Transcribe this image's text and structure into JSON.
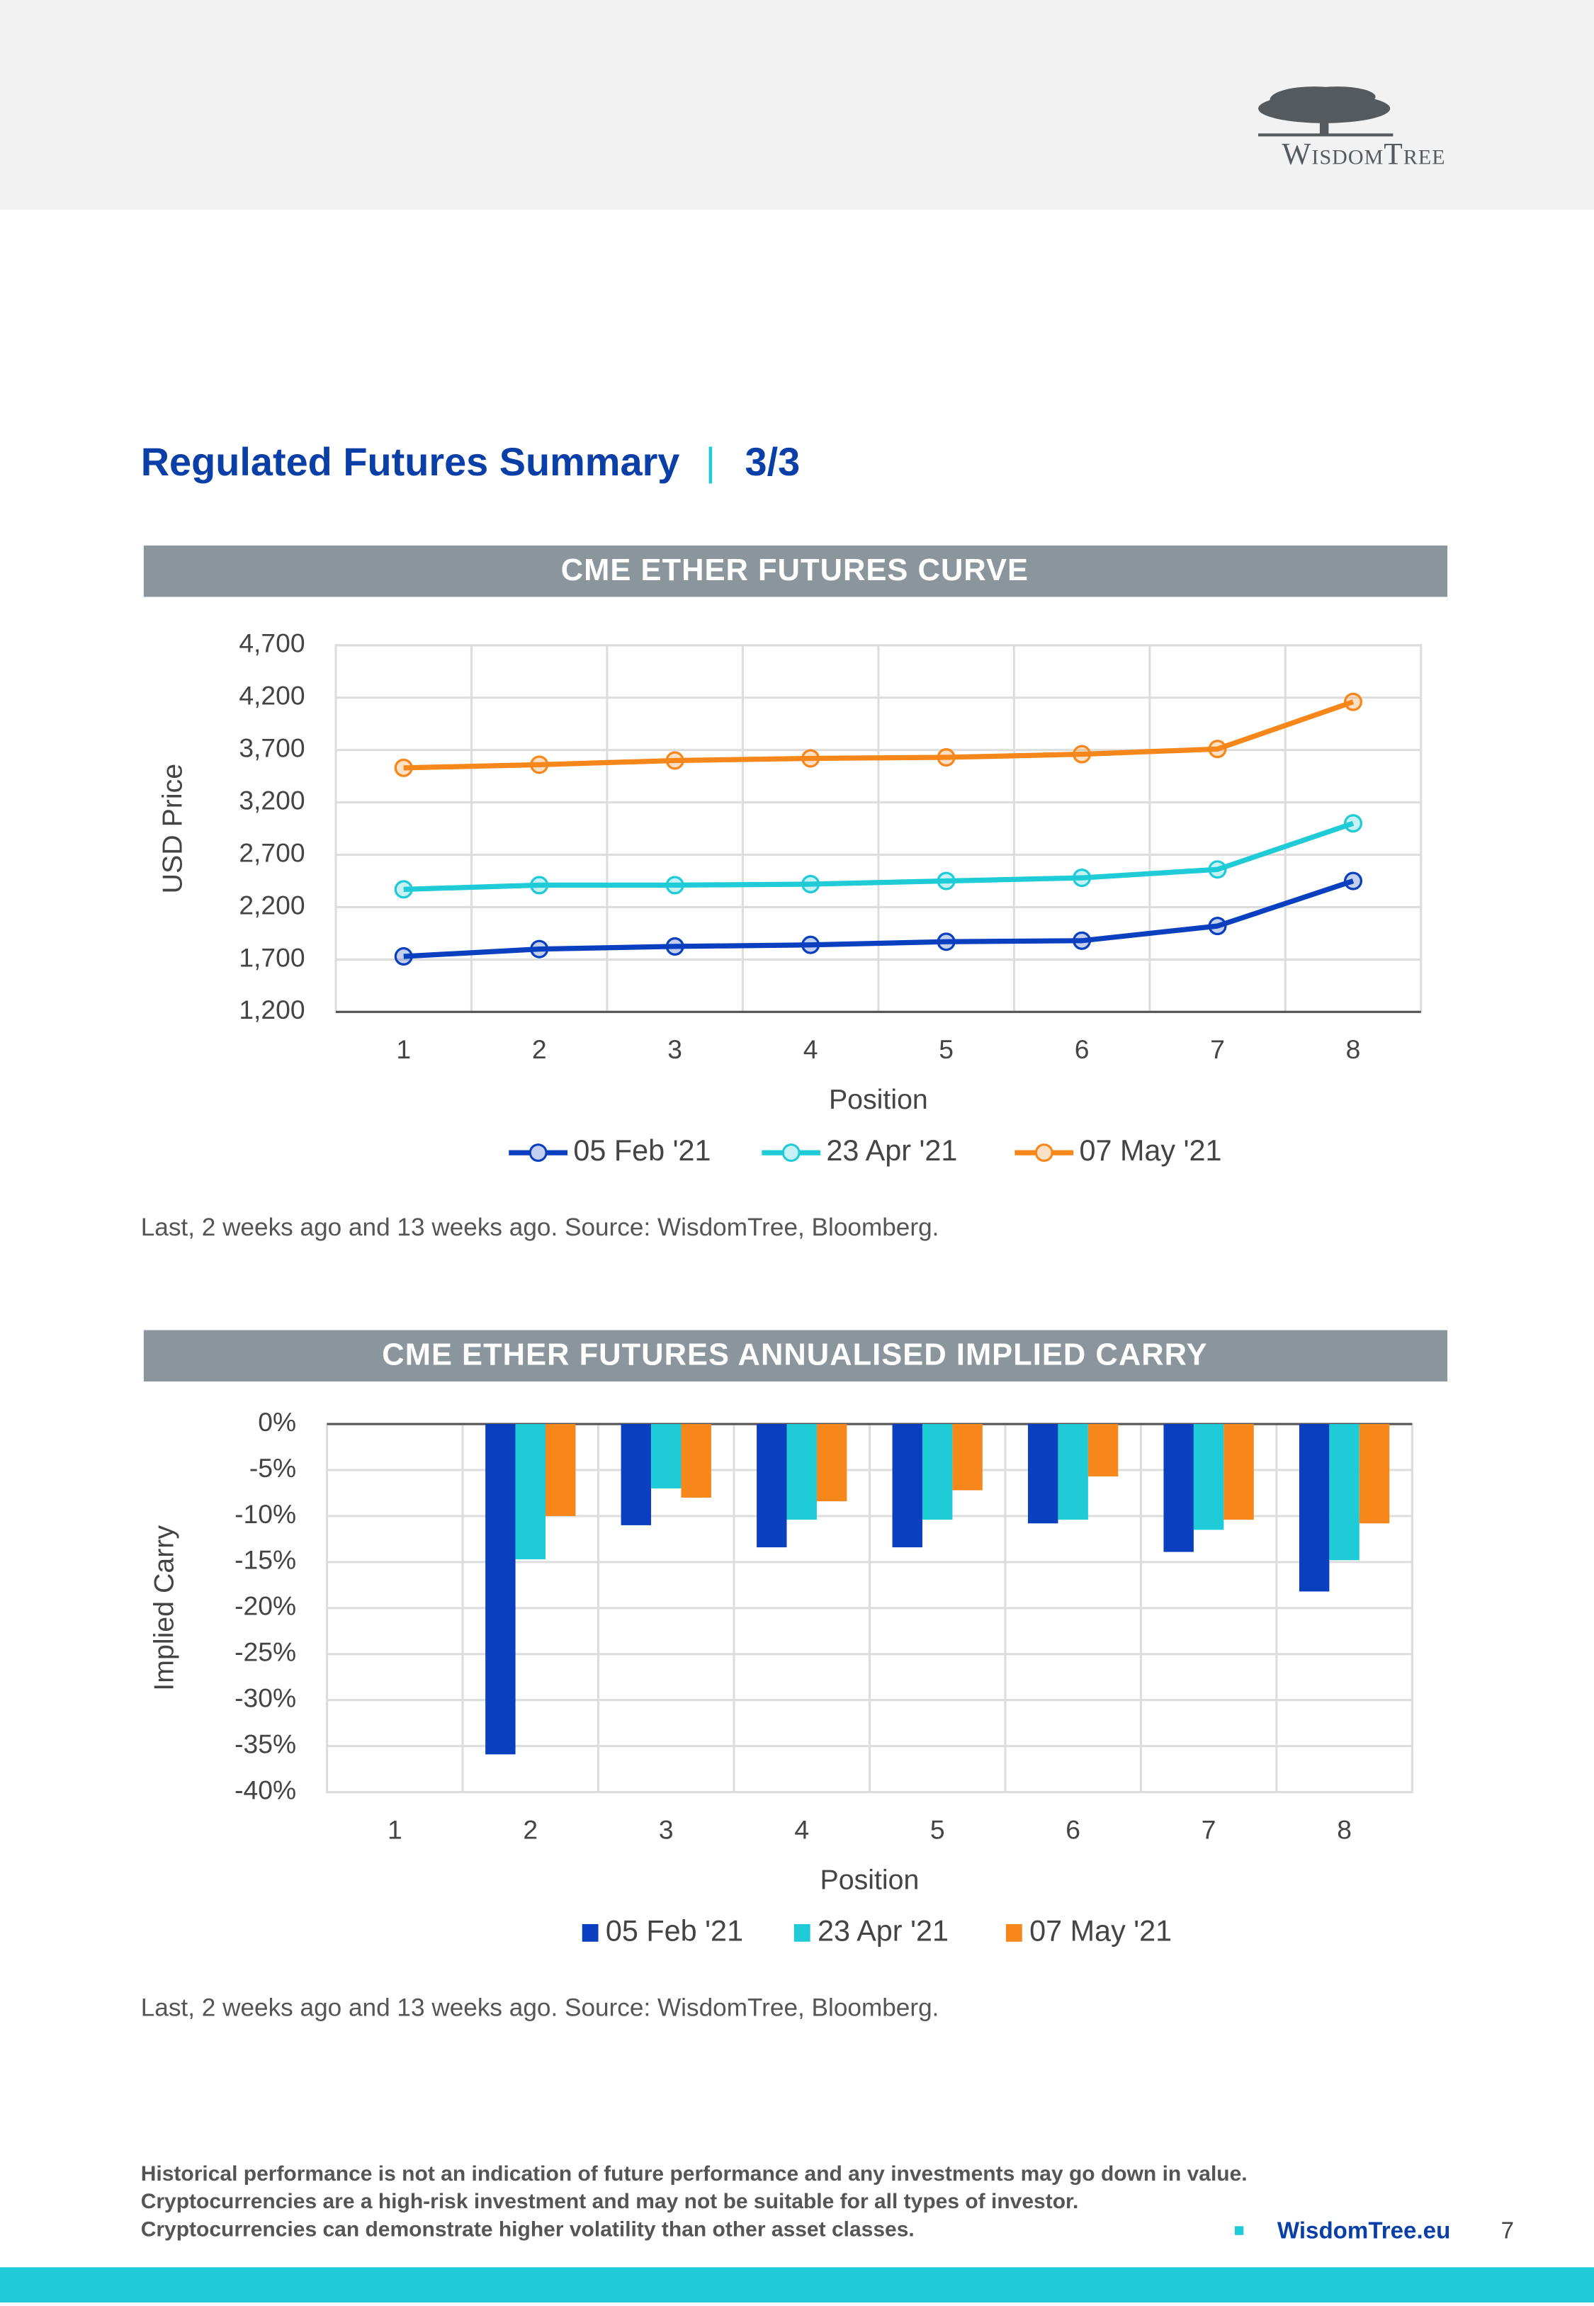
{
  "header": {
    "logo": "WisdomTree"
  },
  "title": "Regulated Futures Summary",
  "page_part": "3/3",
  "chart_data": [
    {
      "type": "line",
      "title": "CME ETHER FUTURES CURVE",
      "x_label": "Position",
      "y_label": "USD Price",
      "categories": [
        "1",
        "2",
        "3",
        "4",
        "5",
        "6",
        "7",
        "8"
      ],
      "series": [
        {
          "name": "05 Feb '21",
          "color": "#0a3fbf",
          "values": [
            1730,
            1800,
            1825,
            1840,
            1870,
            1880,
            2020,
            2450
          ]
        },
        {
          "name": "23 Apr '21",
          "color": "#1ecbd6",
          "values": [
            2370,
            2410,
            2410,
            2420,
            2450,
            2480,
            2560,
            3000
          ]
        },
        {
          "name": "07 May '21",
          "color": "#f7871b",
          "values": [
            3530,
            3560,
            3600,
            3620,
            3630,
            3660,
            3710,
            4160
          ]
        }
      ],
      "ylim": [
        1200,
        4700
      ],
      "yticks": [
        {
          "value": 1200,
          "label": "1,200"
        },
        {
          "value": 1700,
          "label": "1,700"
        },
        {
          "value": 2200,
          "label": "2,200"
        },
        {
          "value": 2700,
          "label": "2,700"
        },
        {
          "value": 3200,
          "label": "3,200"
        },
        {
          "value": 3700,
          "label": "3,700"
        },
        {
          "value": 4200,
          "label": "4,200"
        },
        {
          "value": 4700,
          "label": "4,700"
        }
      ],
      "grid": true,
      "legend": "bottom",
      "note": "Last, 2 weeks ago and 13 weeks ago. Source: WisdomTree, Bloomberg."
    },
    {
      "type": "bar",
      "title": "CME ETHER FUTURES ANNUALISED IMPLIED CARRY",
      "x_label": "Position",
      "y_label": "Implied Carry",
      "categories": [
        "1",
        "2",
        "3",
        "4",
        "5",
        "6",
        "7",
        "8"
      ],
      "series": [
        {
          "name": "05 Feb '21",
          "color": "#0a3fbf",
          "values": [
            null,
            -35.9,
            -11.0,
            -13.4,
            -13.4,
            -10.8,
            -13.9,
            -18.2
          ]
        },
        {
          "name": "23 Apr '21",
          "color": "#1ecbd6",
          "values": [
            null,
            -14.7,
            -7.0,
            -10.4,
            -10.4,
            -10.4,
            -11.5,
            -14.8
          ]
        },
        {
          "name": "07 May '21",
          "color": "#f7871b",
          "values": [
            null,
            -10.0,
            -8.0,
            -8.4,
            -7.2,
            -5.7,
            -10.4,
            -10.8
          ]
        }
      ],
      "ylim": [
        -40,
        0
      ],
      "yticks": [
        {
          "value": -40,
          "label": "-40%"
        },
        {
          "value": -35,
          "label": "-35%"
        },
        {
          "value": -30,
          "label": "-30%"
        },
        {
          "value": -25,
          "label": "-25%"
        },
        {
          "value": -20,
          "label": "-20%"
        },
        {
          "value": -15,
          "label": "-15%"
        },
        {
          "value": -10,
          "label": "-10%"
        },
        {
          "value": -5,
          "label": "-5%"
        },
        {
          "value": 0,
          "label": "0%"
        }
      ],
      "grid": true,
      "legend": "bottom",
      "note": "Last, 2 weeks ago and 13 weeks ago. Source: WisdomTree, Bloomberg."
    }
  ],
  "disclaimer": [
    "Historical performance is not an indication of future performance and any investments may go down in value.",
    "Cryptocurrencies are a high-risk investment and may not be suitable for all types of investor.",
    "Cryptocurrencies can demonstrate higher volatility than other asset classes."
  ],
  "footer": {
    "website": "WisdomTree.eu",
    "page_number": 7
  }
}
